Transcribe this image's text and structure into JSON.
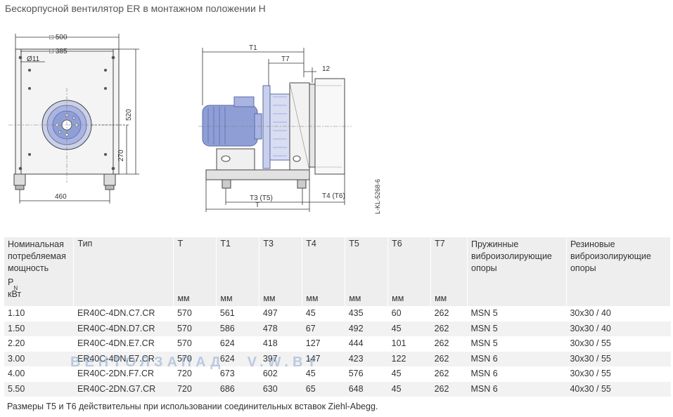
{
  "page": {
    "title": "Бескорпусной вентилятор ER в монтажном положении H",
    "footnote": "Размеры T5 и T6 действительны при использовании соединительных вставок Ziehl-Abegg.",
    "watermark_left": "ВЕНТОЛЗАПАД",
    "watermark_right": "V.W.BY"
  },
  "drawing": {
    "front_view": {
      "dim_500": "□ 500",
      "dim_385": "□ 385",
      "dim_11": "Ø11",
      "dim_520": "520",
      "dim_270": "270",
      "dim_460": "460"
    },
    "side_view": {
      "dim_T1": "T1",
      "dim_T7": "T7",
      "dim_12": "12",
      "dim_T3T5": "T3 (T5)",
      "dim_T": "T",
      "dim_T4T6": "T4 (T6)",
      "drawing_code": "L-KL-5268-6"
    },
    "colors": {
      "motor_blue": "#8f9fd6",
      "motor_dark": "#5b6aa8",
      "frame_gray": "#c8c8c8",
      "outline": "#444444"
    }
  },
  "table": {
    "headers": [
      {
        "label": "Номинальная потребляемая мощность",
        "symbol": "P",
        "subscript": "N",
        "unit": "кВт"
      },
      {
        "label": "Тип",
        "unit": ""
      },
      {
        "label": "T",
        "unit": "мм"
      },
      {
        "label": "T1",
        "unit": "мм"
      },
      {
        "label": "T3",
        "unit": "мм"
      },
      {
        "label": "T4",
        "unit": "мм"
      },
      {
        "label": "T5",
        "unit": "мм"
      },
      {
        "label": "T6",
        "unit": "мм"
      },
      {
        "label": "T7",
        "unit": "мм"
      },
      {
        "label": "Пружинные виброизолирующие опоры",
        "unit": ""
      },
      {
        "label": "Резиновые виброизолирующие опоры",
        "unit": ""
      }
    ],
    "rows": [
      [
        "1.10",
        "ER40C-4DN.C7.CR",
        "570",
        "561",
        "497",
        "45",
        "435",
        "60",
        "262",
        "MSN 5",
        "30x30 / 40"
      ],
      [
        "1.50",
        "ER40C-4DN.D7.CR",
        "570",
        "586",
        "478",
        "67",
        "492",
        "45",
        "262",
        "MSN 5",
        "30x30 / 40"
      ],
      [
        "2.20",
        "ER40C-4DN.E7.CR",
        "570",
        "624",
        "418",
        "127",
        "444",
        "101",
        "262",
        "MSN 5",
        "30x30 / 55"
      ],
      [
        "3.00",
        "ER40C-4DN.E7.CR",
        "570",
        "624",
        "397",
        "147",
        "423",
        "122",
        "262",
        "MSN 6",
        "30x30 / 55"
      ],
      [
        "4.00",
        "ER40C-2DN.F7.CR",
        "720",
        "673",
        "602",
        "45",
        "576",
        "45",
        "262",
        "MSN 6",
        "30x30 / 55"
      ],
      [
        "5.50",
        "ER40C-2DN.G7.CR",
        "720",
        "686",
        "630",
        "65",
        "648",
        "45",
        "262",
        "MSN 6",
        "40x30 / 55"
      ]
    ]
  }
}
